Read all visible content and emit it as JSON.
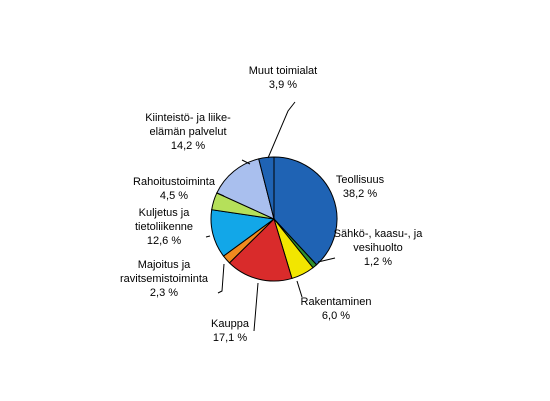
{
  "chart_data": {
    "type": "pie",
    "title": "",
    "slices": [
      {
        "label": [
          "Teollisuus"
        ],
        "value": 38.2,
        "value_label": "38,2 %",
        "color": "#1f63b4"
      },
      {
        "label": [
          "Sähkö-, kaasu-, ja",
          "vesihuolto"
        ],
        "value": 1.2,
        "value_label": "1,2 %",
        "color": "#2f8f2f"
      },
      {
        "label": [
          "Rakentaminen"
        ],
        "value": 6.0,
        "value_label": "6,0 %",
        "color": "#f2e600"
      },
      {
        "label": [
          "Kauppa"
        ],
        "value": 17.1,
        "value_label": "17,1 %",
        "color": "#d92b2b"
      },
      {
        "label": [
          "Majoitus ja",
          "ravitsemistoiminta"
        ],
        "value": 2.3,
        "value_label": "2,3 %",
        "color": "#f08a1f"
      },
      {
        "label": [
          "Kuljetus ja",
          "tietoliikenne"
        ],
        "value": 12.6,
        "value_label": "12,6 %",
        "color": "#12a7e8"
      },
      {
        "label": [
          "Rahoitustoiminta"
        ],
        "value": 4.5,
        "value_label": "4,5 %",
        "color": "#b5e05a"
      },
      {
        "label": [
          "Kiinteistö- ja liike-",
          "elämän palvelut"
        ],
        "value": 14.2,
        "value_label": "14,2 %",
        "color": "#a9bfee"
      },
      {
        "label": [
          "Muut toimialat"
        ],
        "value": 3.9,
        "value_label": "3,9 %",
        "color": "#1f63b4"
      }
    ]
  }
}
